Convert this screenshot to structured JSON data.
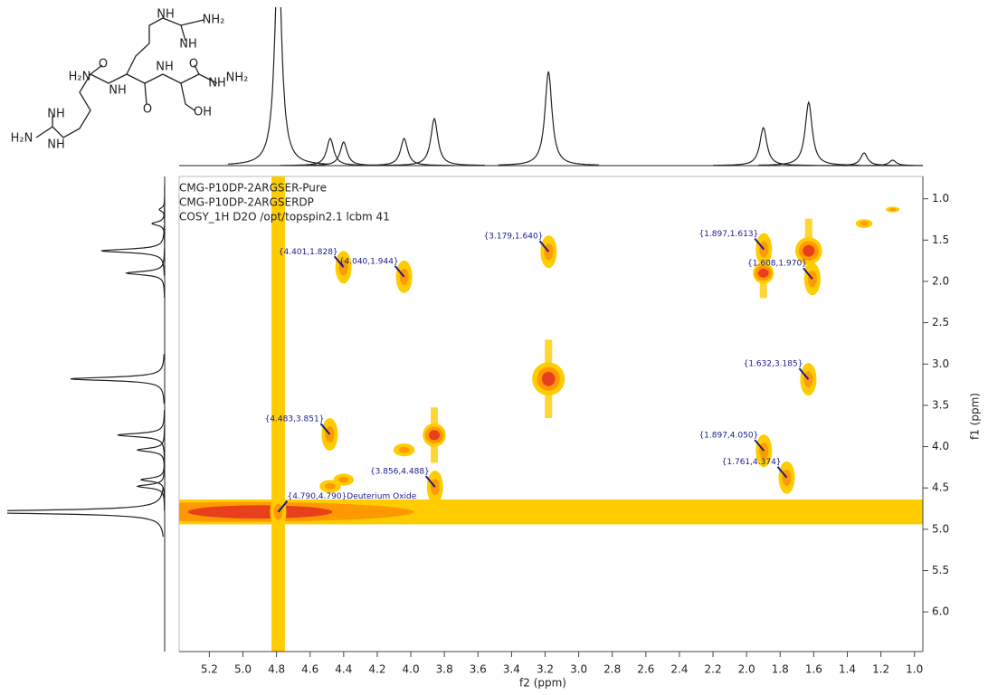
{
  "chart_data": {
    "type": "cosy",
    "header": [
      "CMG-P10DP-2ARGSER-Pure",
      "CMG-P10DP-2ARGSERDP",
      "COSY_1H D2O /opt/topspin2.1 lcbm 41"
    ],
    "x_label": "f2 (ppm)",
    "y_label": "f1 (ppm)",
    "xlim": [
      5.38,
      0.95
    ],
    "ylim": [
      0.73,
      6.48
    ],
    "xticks": [
      5.2,
      {
        "value": 5.0,
        "label": "5.0"
      },
      4.8,
      4.6,
      4.4,
      4.2,
      {
        "value": 4.0,
        "label": "4.0"
      },
      3.8,
      3.6,
      3.4,
      3.2,
      {
        "value": 3.0,
        "label": "3.0"
      },
      2.8,
      2.6,
      2.4,
      2.2,
      {
        "value": 2.0,
        "label": "2.0"
      },
      1.8,
      1.6,
      1.4,
      1.2,
      {
        "value": 1.0,
        "label": "1.0"
      }
    ],
    "yticks": [
      {
        "value": 1.0,
        "label": "1.0"
      },
      1.5,
      {
        "value": 2.0,
        "label": "2.0"
      },
      2.5,
      {
        "value": 3.0,
        "label": "3.0"
      },
      3.5,
      {
        "value": 4.0,
        "label": "4.0"
      },
      4.5,
      {
        "value": 5.0,
        "label": "5.0"
      },
      5.5,
      {
        "value": 6.0,
        "label": "6.0"
      }
    ],
    "contour_colors": [
      "#ffcc00",
      "#ff9900",
      "#e8401c"
    ],
    "label_color": "#1a1a8c",
    "projection_peaks": [
      {
        "ppm": 4.79,
        "height": 120
      },
      {
        "ppm": 4.48,
        "height": 15
      },
      {
        "ppm": 4.4,
        "height": 13
      },
      {
        "ppm": 4.04,
        "height": 15
      },
      {
        "ppm": 3.86,
        "height": 26
      },
      {
        "ppm": 3.18,
        "height": 52
      },
      {
        "ppm": 1.9,
        "height": 21
      },
      {
        "ppm": 1.63,
        "height": 35
      },
      {
        "ppm": 1.3,
        "height": 7
      },
      {
        "ppm": 1.13,
        "height": 3
      }
    ],
    "cross_peaks": [
      {
        "x": 4.401,
        "y": 1.828,
        "label": "{4.401,1.828}"
      },
      {
        "x": 4.04,
        "y": 1.944,
        "label": "{4.040,1.944}"
      },
      {
        "x": 3.179,
        "y": 1.64,
        "label": "{3.179,1.640}"
      },
      {
        "x": 1.897,
        "y": 1.613,
        "label": "{1.897,1.613}"
      },
      {
        "x": 1.608,
        "y": 1.97,
        "label": "{1.608,1.970}"
      },
      {
        "x": 1.632,
        "y": 3.185,
        "label": "{1.632,3.185}"
      },
      {
        "x": 4.483,
        "y": 3.851,
        "label": "{4.483,3.851}"
      },
      {
        "x": 1.897,
        "y": 4.05,
        "label": "{1.897,4.050}"
      },
      {
        "x": 1.761,
        "y": 4.374,
        "label": "{1.761,4.374}"
      },
      {
        "x": 3.856,
        "y": 4.488,
        "label": "{3.856,4.488}"
      },
      {
        "x": 4.79,
        "y": 4.79,
        "label": "{4.790,4.790}Deuterium Oxide"
      }
    ]
  },
  "structure": {
    "labels": [
      "NH",
      "NH₂",
      "NH",
      "H₂N",
      "O",
      "NH",
      "NH",
      "O",
      "O",
      "NH",
      "NH₂",
      "OH",
      "NH",
      "H₂N",
      "NH"
    ]
  }
}
